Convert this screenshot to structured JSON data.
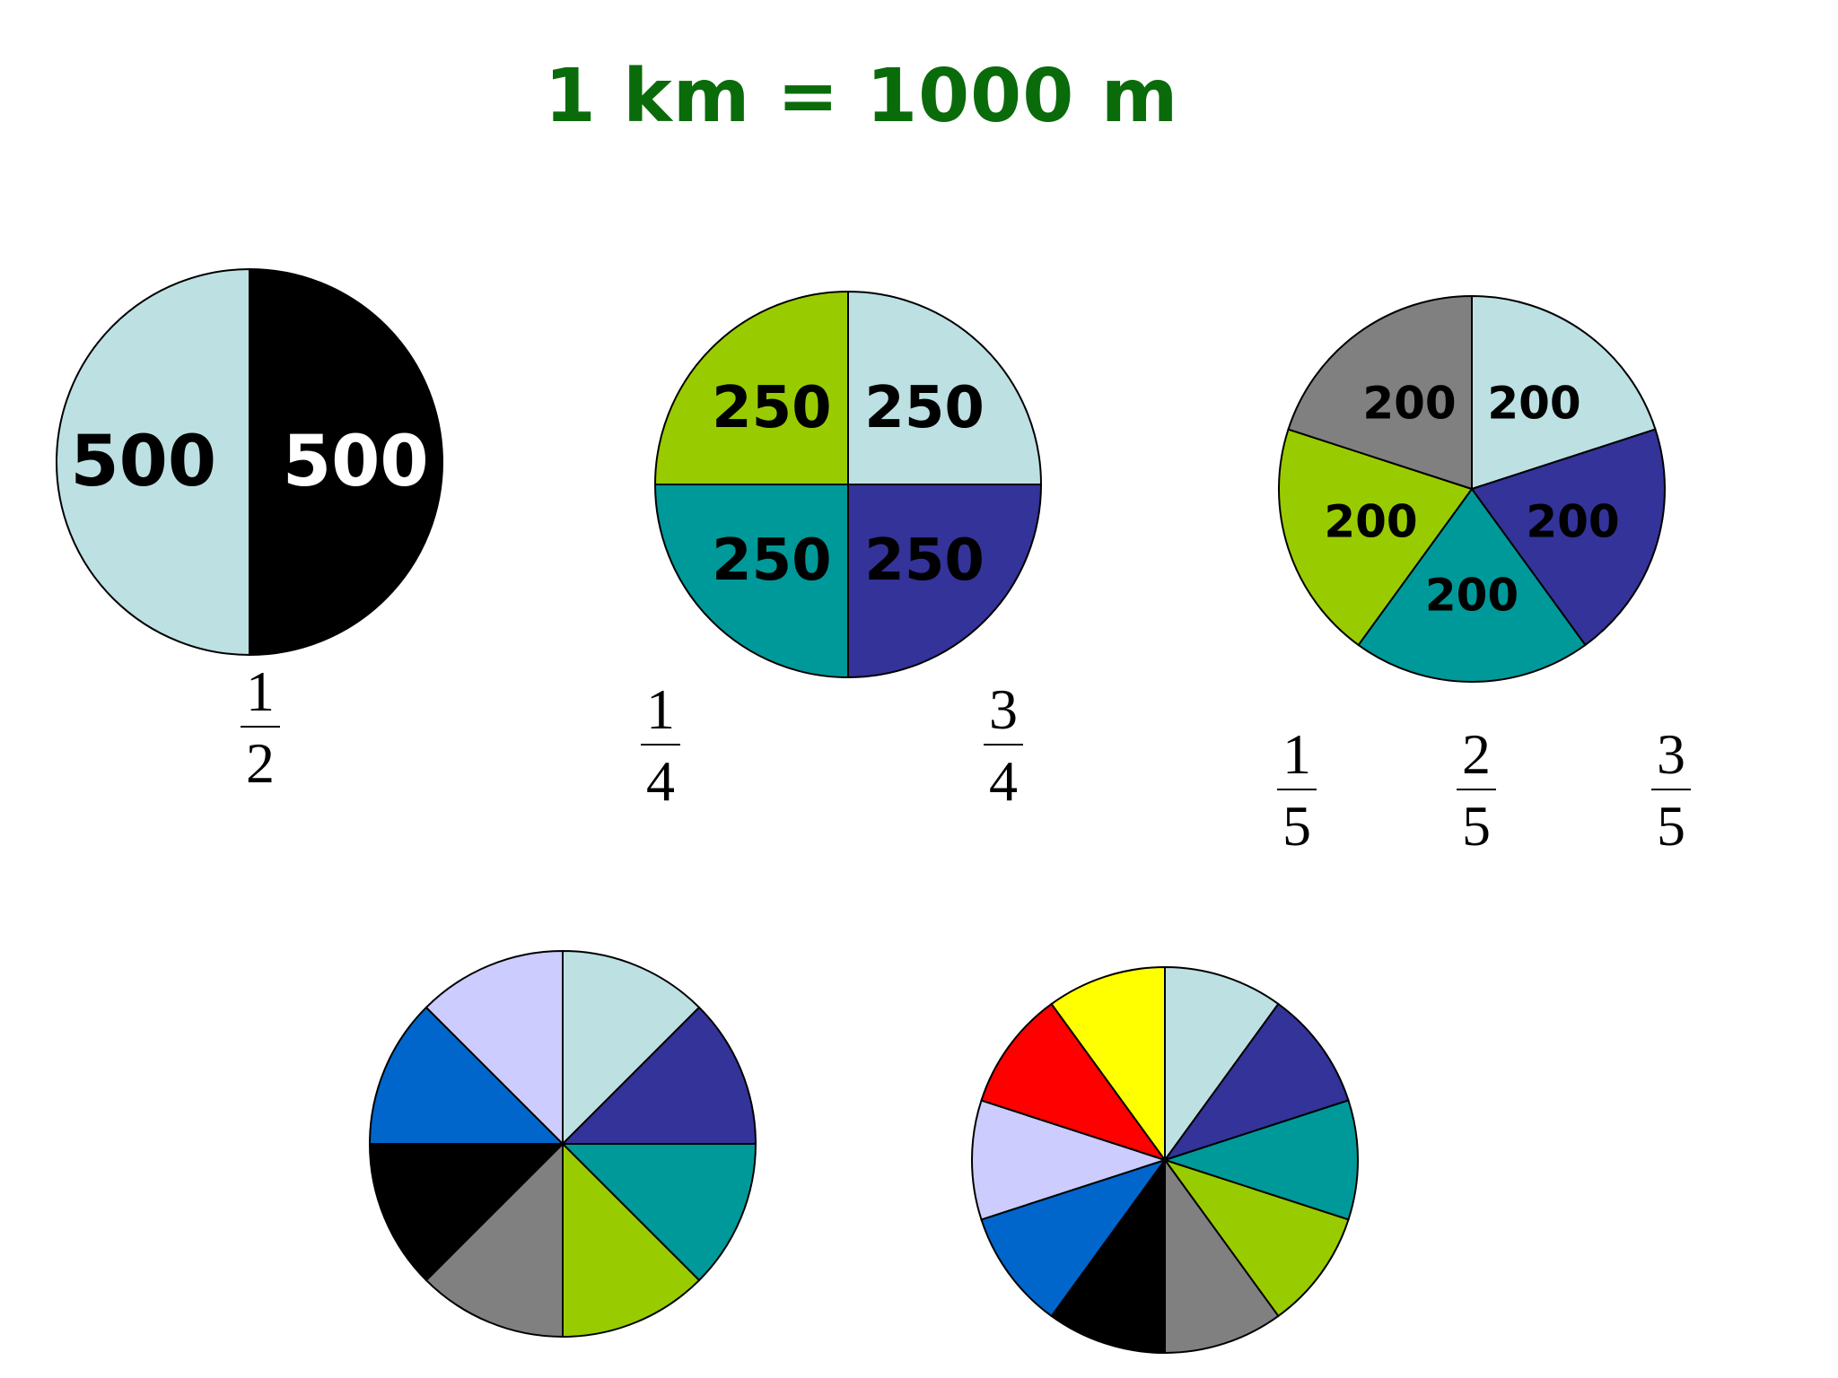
{
  "title": "1 km = 1000 m",
  "colors": {
    "black": "#000000",
    "lightblue": "#bde1e3",
    "lime": "#99cc00",
    "teal": "#009999",
    "navy": "#333399",
    "gray": "#808080",
    "lavender": "#ccccff",
    "blue": "#0066cc",
    "red": "#ff0000",
    "yellow": "#ffff00",
    "title_green": "#0a6b0a"
  },
  "chart_data": [
    {
      "type": "pie",
      "slices": [
        {
          "value": 500,
          "label": "500",
          "color": "#000000",
          "label_color": "#ffffff"
        },
        {
          "value": 500,
          "label": "500",
          "color": "#bde1e3",
          "label_color": "#000000"
        }
      ],
      "fractions": [
        {
          "num": "1",
          "den": "2"
        }
      ]
    },
    {
      "type": "pie",
      "slices": [
        {
          "value": 250,
          "label": "250",
          "color": "#bde1e3",
          "label_color": "#000000"
        },
        {
          "value": 250,
          "label": "250",
          "color": "#333399",
          "label_color": "#000000"
        },
        {
          "value": 250,
          "label": "250",
          "color": "#009999",
          "label_color": "#000000"
        },
        {
          "value": 250,
          "label": "250",
          "color": "#99cc00",
          "label_color": "#000000"
        }
      ],
      "fractions": [
        {
          "num": "1",
          "den": "4"
        },
        {
          "num": "3",
          "den": "4"
        }
      ]
    },
    {
      "type": "pie",
      "slices": [
        {
          "value": 200,
          "label": "200",
          "color": "#bde1e3",
          "label_color": "#000000"
        },
        {
          "value": 200,
          "label": "200",
          "color": "#333399",
          "label_color": "#000000"
        },
        {
          "value": 200,
          "label": "200",
          "color": "#009999",
          "label_color": "#000000"
        },
        {
          "value": 200,
          "label": "200",
          "color": "#99cc00",
          "label_color": "#000000"
        },
        {
          "value": 200,
          "label": "200",
          "color": "#808080",
          "label_color": "#000000"
        }
      ],
      "fractions": [
        {
          "num": "1",
          "den": "5"
        },
        {
          "num": "2",
          "den": "5"
        },
        {
          "num": "3",
          "den": "5"
        }
      ]
    },
    {
      "type": "pie",
      "slices": [
        {
          "value": 1,
          "color": "#bde1e3"
        },
        {
          "value": 1,
          "color": "#333399"
        },
        {
          "value": 1,
          "color": "#009999"
        },
        {
          "value": 1,
          "color": "#99cc00"
        },
        {
          "value": 1,
          "color": "#808080"
        },
        {
          "value": 1,
          "color": "#000000"
        },
        {
          "value": 1,
          "color": "#0066cc"
        },
        {
          "value": 1,
          "color": "#ccccff"
        }
      ],
      "fractions": []
    },
    {
      "type": "pie",
      "slices": [
        {
          "value": 1,
          "color": "#bde1e3"
        },
        {
          "value": 1,
          "color": "#333399"
        },
        {
          "value": 1,
          "color": "#009999"
        },
        {
          "value": 1,
          "color": "#99cc00"
        },
        {
          "value": 1,
          "color": "#808080"
        },
        {
          "value": 1,
          "color": "#000000"
        },
        {
          "value": 1,
          "color": "#0066cc"
        },
        {
          "value": 1,
          "color": "#ccccff"
        },
        {
          "value": 1,
          "color": "#ff0000"
        },
        {
          "value": 1,
          "color": "#ffff00"
        }
      ],
      "fractions": []
    }
  ]
}
